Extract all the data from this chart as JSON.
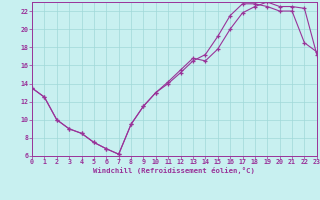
{
  "xlabel": "Windchill (Refroidissement éolien,°C)",
  "bg_color": "#c8f0f0",
  "grid_color": "#a0d8d8",
  "line_color": "#993399",
  "xlim": [
    0,
    23
  ],
  "ylim": [
    6,
    23
  ],
  "xticks": [
    0,
    1,
    2,
    3,
    4,
    5,
    6,
    7,
    8,
    9,
    10,
    11,
    12,
    13,
    14,
    15,
    16,
    17,
    18,
    19,
    20,
    21,
    22,
    23
  ],
  "yticks": [
    6,
    8,
    10,
    12,
    14,
    16,
    18,
    20,
    22
  ],
  "line1_x": [
    0,
    1,
    2,
    3,
    4,
    5,
    6,
    7,
    8,
    9,
    10,
    11,
    12,
    13,
    14,
    15,
    16,
    17,
    18,
    19,
    20,
    21,
    22,
    23
  ],
  "line1_y": [
    13.5,
    12.5,
    10.0,
    9.0,
    8.5,
    7.5,
    6.8,
    6.2,
    9.5,
    11.5,
    13.0,
    14.0,
    15.2,
    16.5,
    17.2,
    19.2,
    21.5,
    22.8,
    22.8,
    22.5,
    22.0,
    22.0,
    18.5,
    17.5
  ],
  "line2_x": [
    0,
    1,
    2,
    3,
    4,
    5,
    6,
    7,
    8,
    9,
    10,
    11,
    12,
    13,
    14,
    15,
    16,
    17,
    18,
    19,
    20,
    21,
    22,
    23
  ],
  "line2_y": [
    13.5,
    12.5,
    10.0,
    9.0,
    8.5,
    7.5,
    6.8,
    6.2,
    9.5,
    11.5,
    13.0,
    14.2,
    15.5,
    16.8,
    16.5,
    17.8,
    20.0,
    21.8,
    22.5,
    23.0,
    22.5,
    22.5,
    22.3,
    17.2
  ]
}
